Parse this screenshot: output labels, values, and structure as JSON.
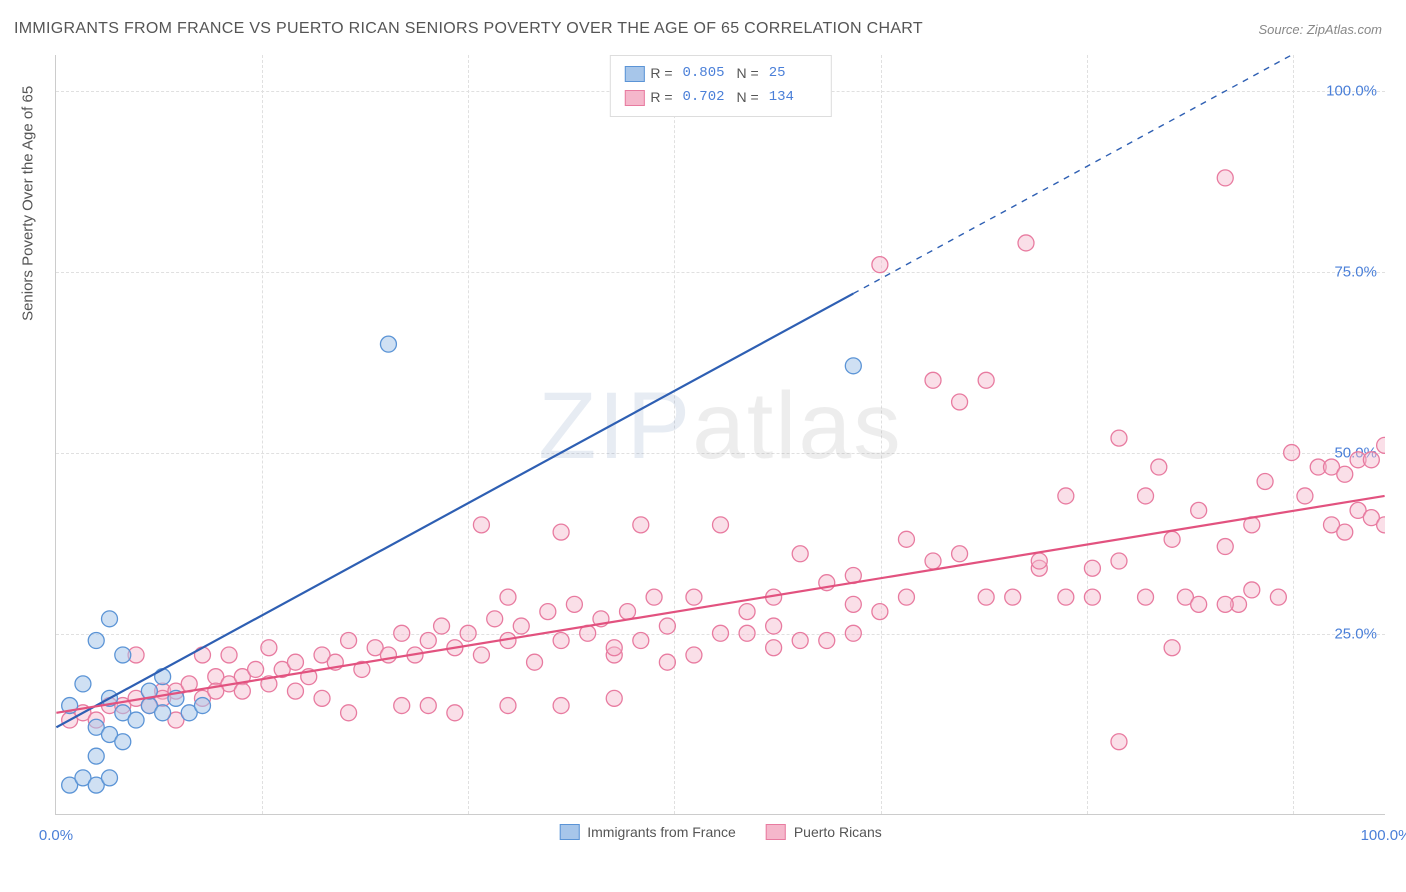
{
  "title": "IMMIGRANTS FROM FRANCE VS PUERTO RICAN SENIORS POVERTY OVER THE AGE OF 65 CORRELATION CHART",
  "source": "Source: ZipAtlas.com",
  "y_axis_label": "Seniors Poverty Over the Age of 65",
  "watermark": "ZIPatlas",
  "chart": {
    "type": "scatter",
    "xlim": [
      0,
      100
    ],
    "ylim": [
      0,
      105
    ],
    "x_ticks": [
      0,
      100
    ],
    "x_tick_labels": [
      "0.0%",
      "100.0%"
    ],
    "y_ticks": [
      25,
      50,
      75,
      100
    ],
    "y_tick_labels": [
      "25.0%",
      "50.0%",
      "75.0%",
      "100.0%"
    ],
    "y_tick_color": "#4a7fd8",
    "x_tick_color": "#4a7fd8",
    "v_grid_positions": [
      15.5,
      31,
      46.5,
      62,
      77.5,
      93
    ],
    "grid_color": "#e0e0e0",
    "background_color": "#ffffff",
    "series": [
      {
        "name": "Immigrants from France",
        "marker_stroke": "#5b94d6",
        "marker_fill": "#a7c6ea",
        "marker_fill_opacity": 0.55,
        "marker_radius": 8,
        "line_color": "#2e5fb3",
        "line_width": 2.2,
        "line_dash_extension": true,
        "R": "0.805",
        "N": "25",
        "swatch_fill": "#a7c6ea",
        "swatch_stroke": "#5b94d6",
        "regression": {
          "x1": 0,
          "y1": 12,
          "x2": 60,
          "y2": 72,
          "x2_dash": 100,
          "y2_dash": 112
        },
        "points": [
          [
            1,
            4
          ],
          [
            2,
            5
          ],
          [
            3,
            4
          ],
          [
            4,
            5
          ],
          [
            3,
            12
          ],
          [
            4,
            11
          ],
          [
            5,
            14
          ],
          [
            4,
            16
          ],
          [
            6,
            13
          ],
          [
            7,
            15
          ],
          [
            8,
            14
          ],
          [
            7,
            17
          ],
          [
            8,
            19
          ],
          [
            9,
            16
          ],
          [
            10,
            14
          ],
          [
            3,
            24
          ],
          [
            4,
            27
          ],
          [
            5,
            22
          ],
          [
            2,
            18
          ],
          [
            1,
            15
          ],
          [
            11,
            15
          ],
          [
            25,
            65
          ],
          [
            60,
            62
          ],
          [
            3,
            8
          ],
          [
            5,
            10
          ]
        ]
      },
      {
        "name": "Puerto Ricans",
        "marker_stroke": "#e87ba0",
        "marker_fill": "#f5b7cb",
        "marker_fill_opacity": 0.45,
        "marker_radius": 8,
        "line_color": "#e2527f",
        "line_width": 2.2,
        "line_dash_extension": false,
        "R": "0.702",
        "N": "134",
        "swatch_fill": "#f5b7cb",
        "swatch_stroke": "#e87ba0",
        "regression": {
          "x1": 0,
          "y1": 14,
          "x2": 100,
          "y2": 44
        },
        "points": [
          [
            1,
            13
          ],
          [
            2,
            14
          ],
          [
            3,
            13
          ],
          [
            4,
            15
          ],
          [
            5,
            15
          ],
          [
            6,
            16
          ],
          [
            7,
            15
          ],
          [
            8,
            17
          ],
          [
            9,
            17
          ],
          [
            10,
            18
          ],
          [
            11,
            16
          ],
          [
            12,
            19
          ],
          [
            13,
            18
          ],
          [
            14,
            19
          ],
          [
            15,
            20
          ],
          [
            16,
            18
          ],
          [
            17,
            20
          ],
          [
            18,
            21
          ],
          [
            9,
            13
          ],
          [
            11,
            22
          ],
          [
            12,
            17
          ],
          [
            13,
            22
          ],
          [
            19,
            19
          ],
          [
            20,
            22
          ],
          [
            21,
            21
          ],
          [
            22,
            24
          ],
          [
            23,
            20
          ],
          [
            24,
            23
          ],
          [
            25,
            22
          ],
          [
            26,
            25
          ],
          [
            27,
            22
          ],
          [
            28,
            24
          ],
          [
            29,
            26
          ],
          [
            30,
            23
          ],
          [
            31,
            25
          ],
          [
            32,
            22
          ],
          [
            33,
            27
          ],
          [
            34,
            24
          ],
          [
            35,
            26
          ],
          [
            36,
            21
          ],
          [
            37,
            28
          ],
          [
            38,
            24
          ],
          [
            39,
            29
          ],
          [
            40,
            25
          ],
          [
            41,
            27
          ],
          [
            42,
            22
          ],
          [
            43,
            28
          ],
          [
            44,
            24
          ],
          [
            45,
            30
          ],
          [
            46,
            21
          ],
          [
            22,
            14
          ],
          [
            26,
            15
          ],
          [
            30,
            14
          ],
          [
            34,
            15
          ],
          [
            38,
            15
          ],
          [
            42,
            16
          ],
          [
            28,
            15
          ],
          [
            32,
            40
          ],
          [
            38,
            39
          ],
          [
            44,
            40
          ],
          [
            34,
            30
          ],
          [
            46,
            26
          ],
          [
            48,
            30
          ],
          [
            50,
            40
          ],
          [
            52,
            25
          ],
          [
            54,
            30
          ],
          [
            56,
            24
          ],
          [
            58,
            32
          ],
          [
            60,
            33
          ],
          [
            42,
            23
          ],
          [
            48,
            22
          ],
          [
            54,
            23
          ],
          [
            60,
            29
          ],
          [
            62,
            76
          ],
          [
            66,
            60
          ],
          [
            68,
            57
          ],
          [
            74,
            34
          ],
          [
            76,
            44
          ],
          [
            78,
            30
          ],
          [
            80,
            52
          ],
          [
            82,
            44
          ],
          [
            83,
            48
          ],
          [
            84,
            38
          ],
          [
            85,
            30
          ],
          [
            86,
            42
          ],
          [
            88,
            37
          ],
          [
            89,
            29
          ],
          [
            90,
            31
          ],
          [
            91,
            46
          ],
          [
            92,
            30
          ],
          [
            93,
            50
          ],
          [
            94,
            44
          ],
          [
            95,
            48
          ],
          [
            96,
            40
          ],
          [
            96,
            48
          ],
          [
            97,
            47
          ],
          [
            97,
            39
          ],
          [
            98,
            42
          ],
          [
            98,
            49
          ],
          [
            99,
            41
          ],
          [
            99,
            49
          ],
          [
            100,
            51
          ],
          [
            100,
            40
          ],
          [
            80,
            10
          ],
          [
            84,
            23
          ],
          [
            88,
            29
          ],
          [
            70,
            30
          ],
          [
            72,
            30
          ],
          [
            73,
            79
          ],
          [
            88,
            88
          ],
          [
            80,
            35
          ],
          [
            6,
            22
          ],
          [
            8,
            16
          ],
          [
            14,
            17
          ],
          [
            16,
            23
          ],
          [
            18,
            17
          ],
          [
            20,
            16
          ],
          [
            64,
            30
          ],
          [
            66,
            35
          ],
          [
            68,
            36
          ],
          [
            70,
            60
          ],
          [
            74,
            35
          ],
          [
            76,
            30
          ],
          [
            78,
            34
          ],
          [
            82,
            30
          ],
          [
            86,
            29
          ],
          [
            90,
            40
          ],
          [
            62,
            28
          ],
          [
            64,
            38
          ],
          [
            50,
            25
          ],
          [
            52,
            28
          ],
          [
            54,
            26
          ],
          [
            56,
            36
          ],
          [
            58,
            24
          ],
          [
            60,
            25
          ]
        ]
      }
    ],
    "legend_top": {
      "R_label": "R =",
      "N_label": "N ="
    },
    "legend_bottom": [
      {
        "label": "Immigrants from France",
        "fill": "#a7c6ea",
        "stroke": "#5b94d6"
      },
      {
        "label": "Puerto Ricans",
        "fill": "#f5b7cb",
        "stroke": "#e87ba0"
      }
    ]
  }
}
